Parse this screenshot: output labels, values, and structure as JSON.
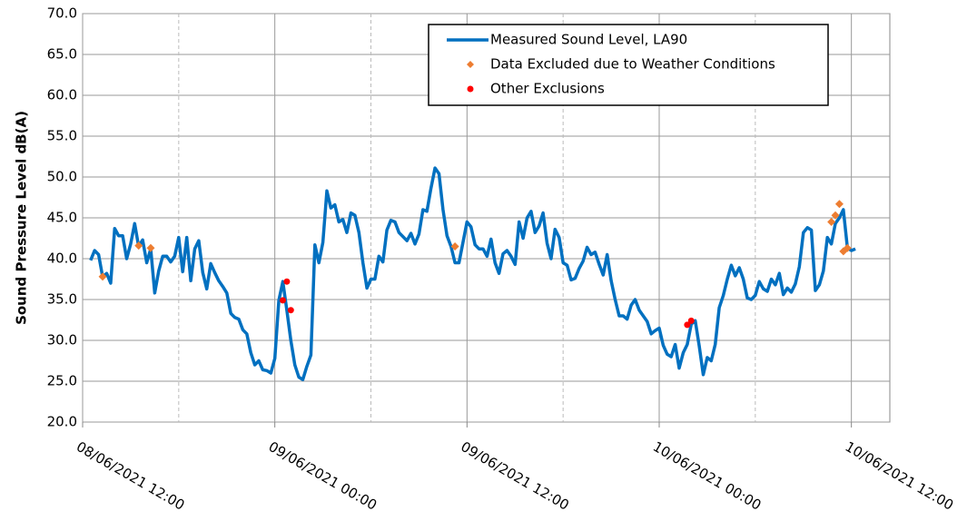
{
  "chart_data": {
    "type": "line",
    "y_label": "Sound Pressure Level dB(A)",
    "ylim": [
      20,
      70
    ],
    "yticks": [
      {
        "value": 20,
        "label": "20.0"
      },
      {
        "value": 25,
        "label": "25.0"
      },
      {
        "value": 30,
        "label": "30.0"
      },
      {
        "value": 35,
        "label": "35.0"
      },
      {
        "value": 40,
        "label": "40.0"
      },
      {
        "value": 45,
        "label": "45.0"
      },
      {
        "value": 50,
        "label": "50.0"
      },
      {
        "value": 55,
        "label": "55.0"
      },
      {
        "value": 60,
        "label": "60.0"
      },
      {
        "value": 65,
        "label": "65.0"
      },
      {
        "value": 70,
        "label": "70.0"
      }
    ],
    "xlim": [
      0,
      50.4
    ],
    "xticks": [
      {
        "value": 0,
        "label": "08/06/2021 12:00"
      },
      {
        "value": 12,
        "label": "09/06/2021 00:00"
      },
      {
        "value": 24,
        "label": "09/06/2021 12:00"
      },
      {
        "value": 36,
        "label": "10/06/2021 00:00"
      },
      {
        "value": 48,
        "label": "10/06/2021 12:00"
      }
    ],
    "x_minor_ticks": [
      6,
      18,
      30,
      42
    ],
    "grid": true,
    "legend": "top-right",
    "x": [
      0.5,
      0.75,
      1,
      1.25,
      1.5,
      1.75,
      2,
      2.25,
      2.5,
      2.75,
      3,
      3.25,
      3.5,
      3.75,
      4,
      4.25,
      4.5,
      4.75,
      5,
      5.25,
      5.5,
      5.75,
      6,
      6.25,
      6.5,
      6.75,
      7,
      7.25,
      7.5,
      7.75,
      8,
      8.25,
      8.5,
      8.75,
      9,
      9.25,
      9.5,
      9.75,
      10,
      10.25,
      10.5,
      10.75,
      11,
      11.25,
      11.5,
      11.75,
      12,
      12.25,
      12.5,
      12.75,
      13,
      13.25,
      13.5,
      13.75,
      14,
      14.25,
      14.5,
      14.75,
      15,
      15.25,
      15.5,
      15.75,
      16,
      16.25,
      16.5,
      16.75,
      17,
      17.25,
      17.5,
      17.75,
      18,
      18.25,
      18.5,
      18.75,
      19,
      19.25,
      19.5,
      19.75,
      20,
      20.25,
      20.5,
      20.75,
      21,
      21.25,
      21.5,
      21.75,
      22,
      22.25,
      22.5,
      22.75,
      23,
      23.25,
      23.5,
      23.75,
      24,
      24.25,
      24.5,
      24.75,
      25,
      25.25,
      25.5,
      25.75,
      26,
      26.25,
      26.5,
      26.75,
      27,
      27.25,
      27.5,
      27.75,
      28,
      28.25,
      28.5,
      28.75,
      29,
      29.25,
      29.5,
      29.75,
      30,
      30.25,
      30.5,
      30.75,
      31,
      31.25,
      31.5,
      31.75,
      32,
      32.25,
      32.5,
      32.75,
      33,
      33.25,
      33.5,
      33.75,
      34,
      34.25,
      34.5,
      34.75,
      35,
      35.25,
      35.5,
      35.75,
      36,
      36.25,
      36.5,
      36.75,
      37,
      37.25,
      37.5,
      37.75,
      38,
      38.25,
      38.5,
      38.75,
      39,
      39.25,
      39.5,
      39.75,
      40,
      40.25,
      40.5,
      40.75,
      41,
      41.25,
      41.5,
      41.75,
      42,
      42.25,
      42.5,
      42.75,
      43,
      43.25,
      43.5,
      43.75,
      44,
      44.25,
      44.5,
      44.75,
      45,
      45.25,
      45.5,
      45.75,
      46,
      46.25,
      46.5,
      46.75,
      47,
      47.25,
      47.5,
      47.75,
      48,
      48.25
    ],
    "series": [
      {
        "name": "Measured Sound Level, LA90",
        "color": "#0070c0",
        "values": [
          39.8,
          41.0,
          40.5,
          37.8,
          38.2,
          37.0,
          43.7,
          42.8,
          42.8,
          40.0,
          41.8,
          44.3,
          41.5,
          42.3,
          39.5,
          41.2,
          35.8,
          38.5,
          40.3,
          40.3,
          39.6,
          40.3,
          42.6,
          38.4,
          42.6,
          37.3,
          41.2,
          42.2,
          38.3,
          36.3,
          39.4,
          38.3,
          37.3,
          36.6,
          35.8,
          33.3,
          32.8,
          32.6,
          31.3,
          30.8,
          28.5,
          27.0,
          27.5,
          26.4,
          26.3,
          26.0,
          27.8,
          34.9,
          37.2,
          33.7,
          30.0,
          27.0,
          25.5,
          25.2,
          26.8,
          28.2,
          41.7,
          39.5,
          42.0,
          48.3,
          46.2,
          46.6,
          44.5,
          44.8,
          43.2,
          45.6,
          45.3,
          43.2,
          39.5,
          36.4,
          37.5,
          37.5,
          40.3,
          39.6,
          43.5,
          44.7,
          44.5,
          43.2,
          42.7,
          42.2,
          43.1,
          41.8,
          43.0,
          46.0,
          45.8,
          48.6,
          51.1,
          50.4,
          46.0,
          42.8,
          41.5,
          39.5,
          39.5,
          42.0,
          44.5,
          43.9,
          41.7,
          41.2,
          41.2,
          40.3,
          42.4,
          39.5,
          38.2,
          40.6,
          41.0,
          40.3,
          39.3,
          44.5,
          42.5,
          45.0,
          45.8,
          43.2,
          44.0,
          45.6,
          41.9,
          40.0,
          43.6,
          42.6,
          39.5,
          39.2,
          37.4,
          37.6,
          38.8,
          39.7,
          41.4,
          40.5,
          40.8,
          39.3,
          38.0,
          40.5,
          37.3,
          35.0,
          33.0,
          33.0,
          32.6,
          34.3,
          35.0,
          33.7,
          33.0,
          32.3,
          30.8,
          31.2,
          31.5,
          29.4,
          28.3,
          28.0,
          29.5,
          26.6,
          28.5,
          29.5,
          32.0,
          32.4,
          29.3,
          25.8,
          27.9,
          27.5,
          29.5,
          34.0,
          35.5,
          37.5,
          39.2,
          37.9,
          38.9,
          37.5,
          35.2,
          35.0,
          35.5,
          37.2,
          36.3,
          36.0,
          37.5,
          36.8,
          38.2,
          35.6,
          36.4,
          35.9,
          36.9,
          39.0,
          43.2,
          43.8,
          43.5,
          36.1,
          36.8,
          38.5,
          42.6,
          41.8,
          44.3,
          45.0,
          46.0,
          41.3,
          41.0,
          41.2
        ]
      },
      {
        "name": "Data Excluded due to Weather Conditions",
        "color": "#ed7d31",
        "type": "scatter",
        "x": [
          1.25,
          3.5,
          4.25,
          23.25,
          46.75,
          47.0,
          47.25,
          47.5,
          47.75
        ],
        "values": [
          37.8,
          41.6,
          41.3,
          41.5,
          44.5,
          45.3,
          46.7,
          40.9,
          41.3
        ]
      },
      {
        "name": "Other Exclusions",
        "color": "#ff0000",
        "type": "scatter",
        "x": [
          12.5,
          12.75,
          13.0,
          37.75,
          38.0
        ],
        "values": [
          34.9,
          37.2,
          33.7,
          31.9,
          32.4
        ]
      }
    ]
  }
}
